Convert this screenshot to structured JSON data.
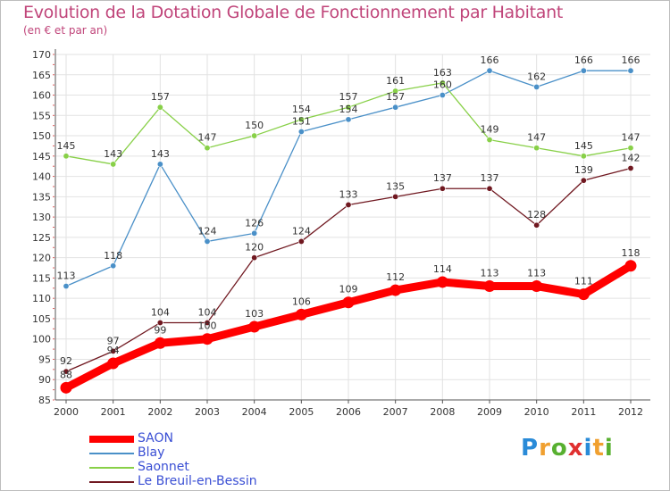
{
  "title": "Evolution de la Dotation Globale de Fonctionnement par Habitant",
  "subtitle": "(en € et par an)",
  "logo": {
    "text": "Proxiti",
    "letters": [
      {
        "ch": "P",
        "color": "#2a8bd8"
      },
      {
        "ch": "r",
        "color": "#f0a030"
      },
      {
        "ch": "o",
        "color": "#58b030"
      },
      {
        "ch": "x",
        "color": "#e03030"
      },
      {
        "ch": "i",
        "color": "#2a8bd8"
      },
      {
        "ch": "t",
        "color": "#f0a030"
      },
      {
        "ch": "i",
        "color": "#58b030"
      }
    ]
  },
  "chart_data": {
    "type": "line",
    "title": "Evolution de la Dotation Globale de Fonctionnement par Habitant",
    "subtitle": "(en € et par an)",
    "x": [
      "2000",
      "2001",
      "2002",
      "2003",
      "2004",
      "2005",
      "2006",
      "2007",
      "2008",
      "2009",
      "2010",
      "2011",
      "2012"
    ],
    "ylim": [
      85,
      170
    ],
    "yticks": [
      85,
      90,
      95,
      100,
      105,
      110,
      115,
      120,
      125,
      130,
      135,
      140,
      145,
      150,
      155,
      160,
      165,
      170
    ],
    "grid": true,
    "legend_position": "bottom-left",
    "series": [
      {
        "name": "SAON",
        "color": "#ff0000",
        "values": [
          88,
          94,
          99,
          100,
          103,
          106,
          109,
          112,
          114,
          113,
          113,
          111,
          118
        ]
      },
      {
        "name": "Blay",
        "color": "#4a90c8",
        "values": [
          113,
          118,
          143,
          124,
          126,
          151,
          154,
          157,
          160,
          166,
          162,
          166,
          166
        ]
      },
      {
        "name": "Saonnet",
        "color": "#88d048",
        "values": [
          145,
          143,
          157,
          147,
          150,
          154,
          157,
          161,
          163,
          149,
          147,
          145,
          147
        ]
      },
      {
        "name": "Le Breuil-en-Bessin",
        "color": "#701820",
        "values": [
          92,
          97,
          104,
          104,
          120,
          124,
          133,
          135,
          137,
          137,
          128,
          139,
          142
        ]
      }
    ]
  }
}
